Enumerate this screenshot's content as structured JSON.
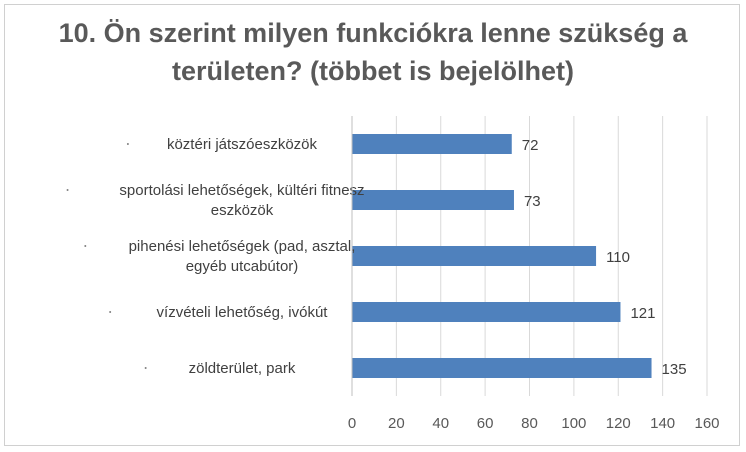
{
  "chart_data": {
    "type": "bar",
    "orientation": "horizontal",
    "title": "10. Ön szerint milyen funkciókra lenne szükség a területen? (többet is bejelölhet)",
    "title_lines": [
      "10. Ön szerint milyen funkciókra lenne szükség a",
      "területen? (többet is bejelölhet)"
    ],
    "categories": [
      [
        "köztéri játszóeszközök"
      ],
      [
        "sportolási lehetőségek, kültéri fitnesz",
        "eszközök"
      ],
      [
        "pihenési lehetőségek (pad, asztal,",
        "egyéb utcabútor)"
      ],
      [
        "vízvételi lehetőség, ivókút"
      ],
      [
        "zöldterület, park"
      ]
    ],
    "category_names": [
      "köztéri játszóeszközök",
      "sportolási lehetőségek, kültéri fitnesz eszközök",
      "pihenési lehetőségek (pad, asztal, egyéb utcabútor)",
      "vízvételi lehetőség, ivókút",
      "zöldterület, park"
    ],
    "values": [
      72,
      73,
      110,
      121,
      135
    ],
    "xlim": [
      0,
      160
    ],
    "xticks": [
      "0",
      "20",
      "40",
      "60",
      "80",
      "100",
      "120",
      "140",
      "160"
    ],
    "grid": "vertical",
    "legend": "none",
    "bar_color": "#4f81bd"
  }
}
